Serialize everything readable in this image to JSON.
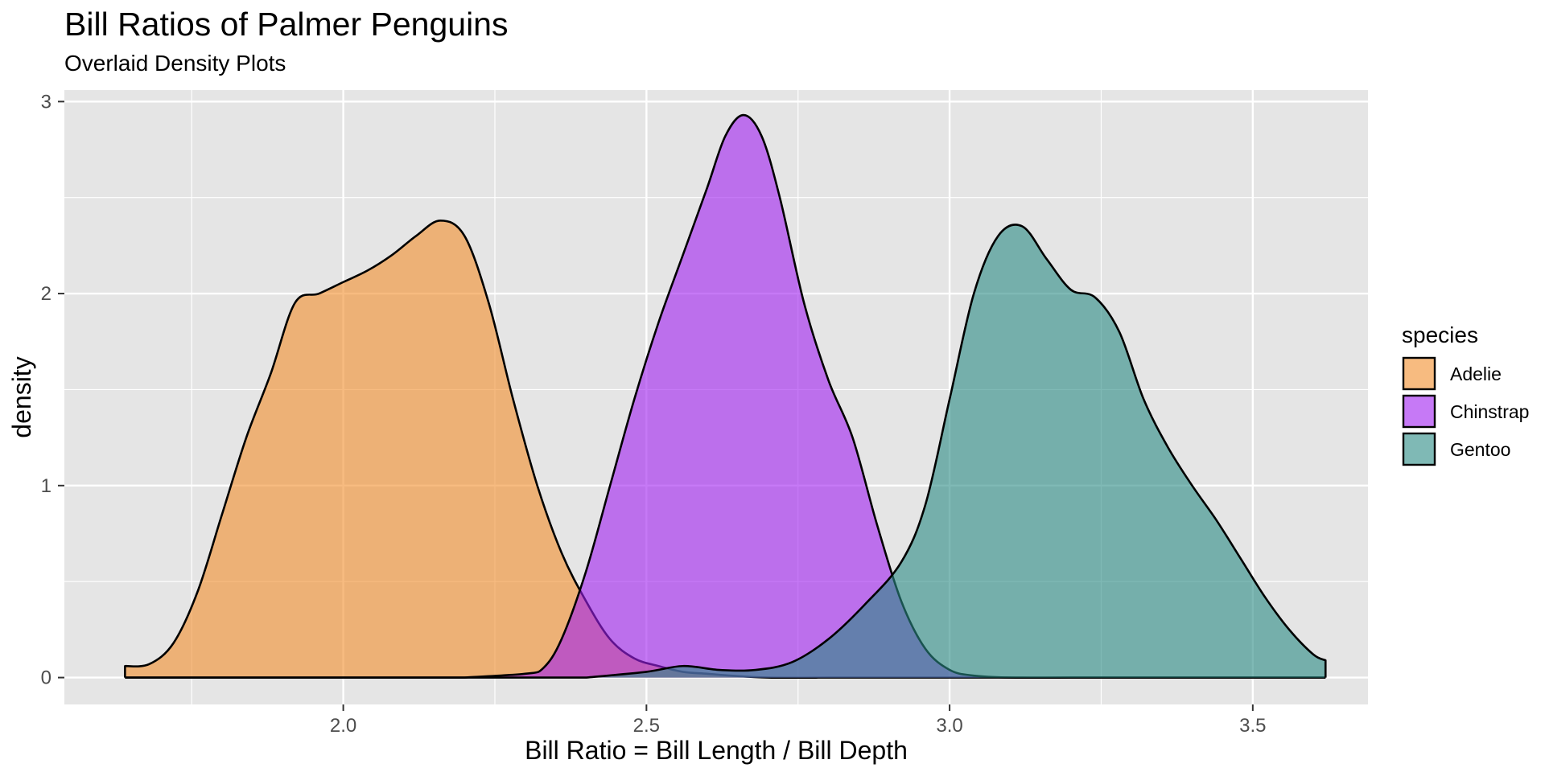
{
  "chart_data": {
    "type": "area",
    "title": "Bill Ratios of Palmer Penguins",
    "subtitle": "Overlaid Density Plots",
    "xlabel": "Bill Ratio = Bill Length / Bill Depth",
    "ylabel": "density",
    "xlim": [
      1.54,
      3.69
    ],
    "ylim": [
      -0.14,
      3.06
    ],
    "x_ticks": [
      2.0,
      2.5,
      3.0,
      3.5
    ],
    "x_tick_labels": [
      "2.0",
      "2.5",
      "3.0",
      "3.5"
    ],
    "y_ticks": [
      0,
      1,
      2,
      3
    ],
    "y_tick_labels": [
      "0",
      "1",
      "2",
      "3"
    ],
    "grid": true,
    "fill_opacity": 0.6,
    "legend": {
      "title": "species",
      "placement": "right",
      "entries": [
        "Adelie",
        "Chinstrap",
        "Gentoo"
      ]
    },
    "series": [
      {
        "name": "Adelie",
        "color": "#F28E2B",
        "x": [
          1.64,
          1.68,
          1.72,
          1.76,
          1.8,
          1.84,
          1.88,
          1.92,
          1.96,
          2.0,
          2.04,
          2.08,
          2.12,
          2.16,
          2.2,
          2.24,
          2.28,
          2.32,
          2.36,
          2.4,
          2.44,
          2.48,
          2.52,
          2.56,
          2.6,
          2.64,
          2.7,
          2.8
        ],
        "y": [
          0.06,
          0.07,
          0.18,
          0.45,
          0.85,
          1.25,
          1.58,
          1.95,
          2.0,
          2.06,
          2.12,
          2.2,
          2.3,
          2.38,
          2.3,
          1.95,
          1.45,
          1.0,
          0.65,
          0.4,
          0.2,
          0.1,
          0.06,
          0.03,
          0.02,
          0.01,
          0.0,
          0.0
        ]
      },
      {
        "name": "Chinstrap",
        "color": "#A020F0",
        "x": [
          2.2,
          2.3,
          2.33,
          2.36,
          2.4,
          2.44,
          2.48,
          2.52,
          2.56,
          2.6,
          2.63,
          2.66,
          2.69,
          2.72,
          2.76,
          2.8,
          2.84,
          2.88,
          2.92,
          2.96,
          3.0,
          3.04,
          3.1,
          3.2
        ],
        "y": [
          0.0,
          0.02,
          0.05,
          0.2,
          0.55,
          1.0,
          1.45,
          1.85,
          2.2,
          2.55,
          2.82,
          2.93,
          2.82,
          2.5,
          1.95,
          1.55,
          1.25,
          0.8,
          0.4,
          0.15,
          0.04,
          0.01,
          0.0,
          0.0
        ]
      },
      {
        "name": "Gentoo",
        "color": "#2A8A83",
        "x": [
          2.4,
          2.5,
          2.56,
          2.62,
          2.68,
          2.74,
          2.8,
          2.86,
          2.92,
          2.96,
          3.0,
          3.04,
          3.08,
          3.12,
          3.16,
          3.2,
          3.24,
          3.28,
          3.32,
          3.36,
          3.4,
          3.44,
          3.48,
          3.52,
          3.56,
          3.6,
          3.62
        ],
        "y": [
          0.0,
          0.03,
          0.06,
          0.04,
          0.04,
          0.08,
          0.2,
          0.38,
          0.6,
          0.9,
          1.45,
          2.0,
          2.3,
          2.35,
          2.18,
          2.02,
          1.98,
          1.8,
          1.45,
          1.2,
          1.0,
          0.82,
          0.62,
          0.42,
          0.25,
          0.12,
          0.09
        ]
      }
    ],
    "annotations": []
  },
  "colors": {
    "panel_background": "#E5E5E5",
    "grid": "#FFFFFF",
    "outline": "#000000"
  }
}
